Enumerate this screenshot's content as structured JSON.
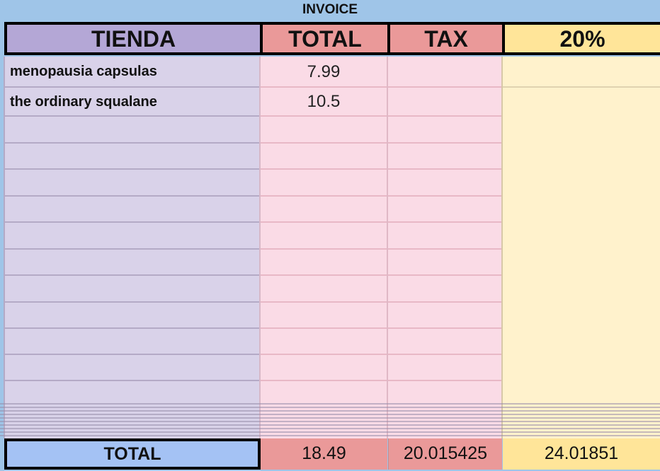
{
  "title": "INVOICE",
  "headers": [
    "TIENDA",
    "TOTAL",
    "TAX",
    "20%"
  ],
  "rows": [
    {
      "tienda": "menopausia capsulas",
      "total": "7.99"
    },
    {
      "tienda": "the ordinary squalane",
      "total": "10.5"
    }
  ],
  "totals": {
    "label": "TOTAL",
    "total": "18.49",
    "tax": "20.015425",
    "pct": "24.01851"
  },
  "colors": {
    "tienda_header": "#b4a7d6",
    "total_header": "#ea9999",
    "pct_header": "#ffe599",
    "total_label": "#a4c2f4"
  }
}
